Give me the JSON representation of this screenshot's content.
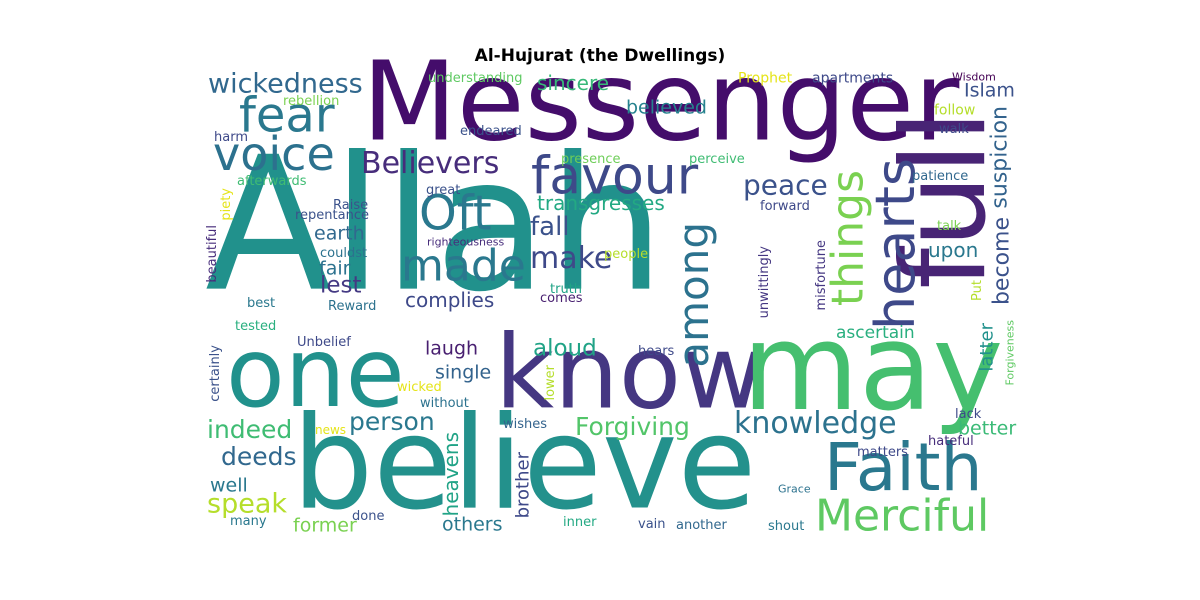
{
  "title": "Al-Hujurat (the Dwellings)",
  "words": [
    {
      "text": "Allah",
      "color": "#21918c"
    },
    {
      "text": "Messenger",
      "color": "#440d6b"
    },
    {
      "text": "believe",
      "color": "#23918c"
    },
    {
      "text": "know",
      "color": "#453782"
    },
    {
      "text": "may",
      "color": "#45bf6f"
    },
    {
      "text": "one",
      "color": "#21918c"
    },
    {
      "text": "full",
      "color": "#482475"
    },
    {
      "text": "Faith",
      "color": "#2a788e"
    },
    {
      "text": "Merciful",
      "color": "#5ec962"
    },
    {
      "text": "favour",
      "color": "#3e4989"
    },
    {
      "text": "hearts",
      "color": "#3e4989"
    },
    {
      "text": "things",
      "color": "#7ad151"
    },
    {
      "text": "fear",
      "color": "#2a788e"
    },
    {
      "text": "voice",
      "color": "#2c718e"
    },
    {
      "text": "Oft",
      "color": "#2a788e"
    },
    {
      "text": "made",
      "color": "#2a788e"
    },
    {
      "text": "among",
      "color": "#2c728e"
    },
    {
      "text": "Believers",
      "color": "#472d7b"
    },
    {
      "text": "wickedness",
      "color": "#31688e"
    },
    {
      "text": "peace",
      "color": "#3b528b"
    },
    {
      "text": "suspicion",
      "color": "#33638d"
    },
    {
      "text": "become",
      "color": "#3b528b"
    },
    {
      "text": "knowledge",
      "color": "#2c728e"
    },
    {
      "text": "Forgiving",
      "color": "#52c569"
    },
    {
      "text": "person",
      "color": "#2a788e"
    },
    {
      "text": "make",
      "color": "#3e4989"
    },
    {
      "text": "fall",
      "color": "#3b528b"
    },
    {
      "text": "indeed",
      "color": "#3fbc73"
    },
    {
      "text": "deeds",
      "color": "#31688e"
    },
    {
      "text": "speak",
      "color": "#b5de2b"
    },
    {
      "text": "aloud",
      "color": "#20a386"
    },
    {
      "text": "ascertain",
      "color": "#29af7f"
    },
    {
      "text": "transgresses",
      "color": "#23a983"
    },
    {
      "text": "sincere",
      "color": "#37b878"
    },
    {
      "text": "believed",
      "color": "#26828e"
    },
    {
      "text": "Islam",
      "color": "#3b528b"
    },
    {
      "text": "earth",
      "color": "#31688e"
    },
    {
      "text": "lest",
      "color": "#443983"
    },
    {
      "text": "complies",
      "color": "#3e4989"
    },
    {
      "text": "upon",
      "color": "#2a788e"
    },
    {
      "text": "latter",
      "color": "#21918c"
    },
    {
      "text": "better",
      "color": "#3aba76"
    },
    {
      "text": "heavens",
      "color": "#20a386"
    },
    {
      "text": "brother",
      "color": "#3e4989"
    },
    {
      "text": "laugh",
      "color": "#481f70"
    },
    {
      "text": "single",
      "color": "#33638d"
    },
    {
      "text": "fair",
      "color": "#2c728e"
    },
    {
      "text": "well",
      "color": "#2a788e"
    },
    {
      "text": "others",
      "color": "#2a788e"
    },
    {
      "text": "former",
      "color": "#7ad151"
    },
    {
      "text": "understanding",
      "color": "#5ec962"
    },
    {
      "text": "Prophet",
      "color": "#e5e419"
    },
    {
      "text": "apartments",
      "color": "#3e4989"
    },
    {
      "text": "Wisdom",
      "color": "#440154"
    },
    {
      "text": "rebellion",
      "color": "#7ad151"
    },
    {
      "text": "follow",
      "color": "#b5de2b"
    },
    {
      "text": "walk",
      "color": "#3e4989"
    },
    {
      "text": "harm",
      "color": "#3e4989"
    },
    {
      "text": "endeared",
      "color": "#3b528b"
    },
    {
      "text": "presence",
      "color": "#6ece58"
    },
    {
      "text": "perceive",
      "color": "#3fbc73"
    },
    {
      "text": "afterwards",
      "color": "#3fbc73"
    },
    {
      "text": "patience",
      "color": "#31688e"
    },
    {
      "text": "great",
      "color": "#3b528b"
    },
    {
      "text": "Raise",
      "color": "#3b528b"
    },
    {
      "text": "forward",
      "color": "#3e4989"
    },
    {
      "text": "repentance",
      "color": "#3b528b"
    },
    {
      "text": "piety",
      "color": "#e5e419"
    },
    {
      "text": "righteousness",
      "color": "#472d7b"
    },
    {
      "text": "couldst",
      "color": "#2c728e"
    },
    {
      "text": "people",
      "color": "#b5de2b"
    },
    {
      "text": "talk",
      "color": "#7ad151"
    },
    {
      "text": "beautiful",
      "color": "#472d7b"
    },
    {
      "text": "unwittingly",
      "color": "#453782"
    },
    {
      "text": "misfortune",
      "color": "#453782"
    },
    {
      "text": "truth",
      "color": "#20a386"
    },
    {
      "text": "comes",
      "color": "#481f70"
    },
    {
      "text": "Put",
      "color": "#b5de2b"
    },
    {
      "text": "best",
      "color": "#2a788e"
    },
    {
      "text": "Reward",
      "color": "#2c728e"
    },
    {
      "text": "tested",
      "color": "#29af7f"
    },
    {
      "text": "Forgiveness",
      "color": "#5ec962"
    },
    {
      "text": "Unbelief",
      "color": "#3e4989"
    },
    {
      "text": "hears",
      "color": "#3e4989"
    },
    {
      "text": "certainly",
      "color": "#3b528b"
    },
    {
      "text": "wicked",
      "color": "#e5e419"
    },
    {
      "text": "without",
      "color": "#2c728e"
    },
    {
      "text": "lower",
      "color": "#b5de2b"
    },
    {
      "text": "lack",
      "color": "#3e4989"
    },
    {
      "text": "hateful",
      "color": "#472d7b"
    },
    {
      "text": "news",
      "color": "#e5e419"
    },
    {
      "text": "wishes",
      "color": "#33638d"
    },
    {
      "text": "matters",
      "color": "#3e4989"
    },
    {
      "text": "Grace",
      "color": "#2c728e"
    },
    {
      "text": "many",
      "color": "#2a788e"
    },
    {
      "text": "done",
      "color": "#3b528b"
    },
    {
      "text": "inner",
      "color": "#23a983"
    },
    {
      "text": "vain",
      "color": "#3b528b"
    },
    {
      "text": "another",
      "color": "#31688e"
    },
    {
      "text": "shout",
      "color": "#2a788e"
    }
  ]
}
